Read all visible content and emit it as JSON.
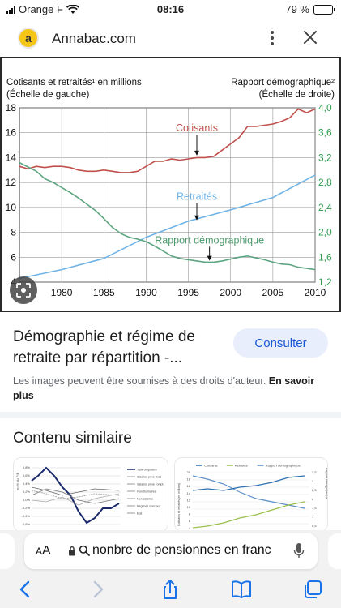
{
  "status_bar": {
    "carrier": "Orange F",
    "time": "08:16",
    "battery": "79 %",
    "battery_level": 0.79
  },
  "header": {
    "logo_letter": "a",
    "site_name": "Annabac.com"
  },
  "chart_data": {
    "type": "line",
    "ylabel_left": [
      "Cotisants et retraités¹ en millions",
      "(Échelle de gauche)"
    ],
    "ylabel_right": [
      "Rapport démographique²",
      "(Échelle de droite)"
    ],
    "x_ticks": [
      "1980",
      "1985",
      "1990",
      "1995",
      "2000",
      "2005",
      "2010"
    ],
    "xlim": [
      1975,
      2010
    ],
    "y_left_ticks": [
      "4",
      "6",
      "8",
      "10",
      "12",
      "14",
      "16",
      "18"
    ],
    "ylim_left": [
      4,
      18
    ],
    "y_right_ticks": [
      "1,2",
      "1,6",
      "2,0",
      "2,4",
      "2,8",
      "3,2",
      "3,6",
      "4,0"
    ],
    "ylim_right": [
      1.2,
      4.0
    ],
    "grid": true,
    "colors": {
      "cotisants": "#c0504d",
      "retraites": "#6fb3e6",
      "rapport": "#5da581",
      "right_axis": "#2e9e4f"
    },
    "series": [
      {
        "name": "Cotisants",
        "axis": "left",
        "x": [
          1975,
          1976,
          1977,
          1978,
          1979,
          1980,
          1981,
          1982,
          1983,
          1984,
          1985,
          1986,
          1987,
          1988,
          1989,
          1990,
          1991,
          1992,
          1993,
          1994,
          1995,
          1996,
          1997,
          1998,
          1999,
          2000,
          2001,
          2002,
          2003,
          2004,
          2005,
          2006,
          2007,
          2008,
          2009,
          2010
        ],
        "values": [
          13.3,
          13.1,
          13.3,
          13.2,
          13.3,
          13.3,
          13.2,
          13.0,
          12.9,
          12.9,
          13.0,
          12.9,
          12.8,
          12.8,
          12.9,
          13.3,
          13.7,
          13.7,
          13.9,
          13.8,
          13.9,
          14.0,
          14.0,
          14.1,
          14.6,
          15.1,
          15.6,
          16.5,
          16.5,
          16.6,
          16.7,
          16.9,
          17.2,
          17.9,
          17.6,
          17.9
        ]
      },
      {
        "name": "Retraités",
        "axis": "left",
        "x": [
          1975,
          1980,
          1985,
          1990,
          1995,
          2000,
          2005,
          2010
        ],
        "values": [
          4.3,
          5.0,
          5.9,
          7.6,
          8.9,
          9.8,
          10.8,
          12.6
        ]
      },
      {
        "name": "Rapport démographique",
        "axis": "right",
        "x": [
          1975,
          1976,
          1977,
          1978,
          1979,
          1980,
          1981,
          1982,
          1983,
          1984,
          1985,
          1986,
          1987,
          1988,
          1989,
          1990,
          1991,
          1992,
          1993,
          1994,
          1995,
          1996,
          1997,
          1998,
          1999,
          2000,
          2001,
          2002,
          2003,
          2004,
          2005,
          2006,
          2007,
          2008,
          2009,
          2010
        ],
        "values": [
          3.12,
          3.05,
          2.98,
          2.86,
          2.8,
          2.72,
          2.64,
          2.55,
          2.45,
          2.35,
          2.22,
          2.08,
          1.98,
          1.92,
          1.89,
          1.85,
          1.78,
          1.7,
          1.62,
          1.58,
          1.56,
          1.54,
          1.52,
          1.52,
          1.54,
          1.57,
          1.6,
          1.62,
          1.59,
          1.56,
          1.52,
          1.49,
          1.48,
          1.44,
          1.42,
          1.4
        ]
      }
    ],
    "annotations": [
      {
        "text": "Cotisants",
        "x": 1996,
        "y": 16.1,
        "axis": "left",
        "color": "#c0504d",
        "arrow_to": [
          1996,
          14.1
        ]
      },
      {
        "text": "Retraités",
        "x": 1996,
        "y": 10.6,
        "axis": "left",
        "color": "#6fb3e6",
        "arrow_to": [
          1996,
          8.9
        ]
      },
      {
        "text": "Rapport démographique",
        "x": 1997.5,
        "y": 1.82,
        "axis": "right",
        "color": "#4a9a6b",
        "arrow_to": [
          1997.5,
          1.53
        ]
      }
    ]
  },
  "result": {
    "title": "Démographie et régime de retraite par répartition -...",
    "consult_label": "Consulter",
    "copyright_text": "Les images peuvent être soumises à des droits d'auteur.",
    "learn_more": "En savoir plus"
  },
  "similar": {
    "title": "Contenu similaire",
    "thumb1": {
      "ylabel": "en % du PIB",
      "y_ticks": [
        "0,8%",
        "0,6%",
        "0,4%",
        "0,2%",
        "0,0%",
        "-0,2%",
        "-0,4%",
        "-0,6%"
      ],
      "legend": [
        "Taux d'équilibre",
        "Salaires privé fixes",
        "Salaires privé compt.",
        "Fonctionnaires",
        "Non salariés",
        "Régimes spéciaux",
        "Etat"
      ]
    },
    "thumb2": {
      "legend": [
        "Cotisants",
        "Retraités",
        "Rapport démographique"
      ],
      "y_ticks": [
        "20",
        "18",
        "16",
        "14",
        "12",
        "10",
        "8",
        "6",
        "4"
      ],
      "y_right_ticks": [
        "3,5",
        "3",
        "2,5",
        "2",
        "1,5",
        "1",
        "0,5"
      ],
      "left_title": "Cotisants et retraités (en millions)",
      "right_title": "Rapport démographique"
    }
  },
  "search_bar": {
    "aa_label": "AA",
    "query": "nonbre de pensionnes en franc"
  },
  "toolbar": {
    "icons": [
      "back-icon",
      "forward-icon",
      "share-icon",
      "bookmarks-icon",
      "tabs-icon"
    ]
  }
}
